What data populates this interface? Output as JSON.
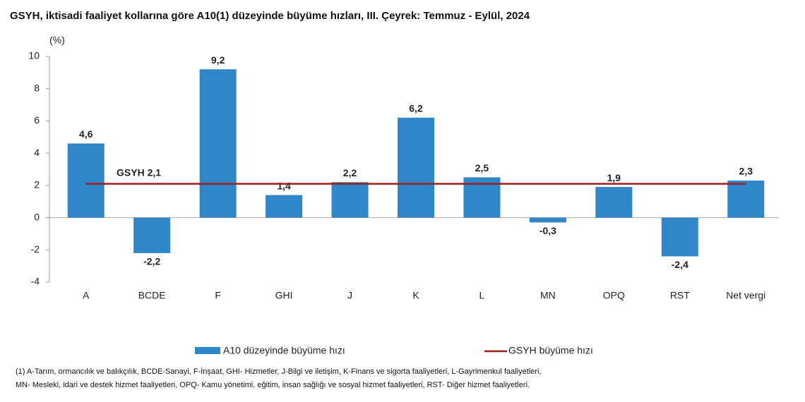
{
  "chart_data": {
    "type": "bar",
    "title": "GSYH, iktisadi faaliyet kollarına göre A10(1) düzeyinde büyüme hızları, III. Çeyrek: Temmuz - Eylül, 2024",
    "y_label": "(%)",
    "categories": [
      "A",
      "BCDE",
      "F",
      "GHI",
      "J",
      "K",
      "L",
      "MN",
      "OPQ",
      "RST",
      "Net vergi"
    ],
    "series": [
      {
        "name": "A10 düzeyinde büyüme hızı",
        "color": "#2f86c9",
        "values": [
          4.6,
          -2.2,
          9.2,
          1.4,
          2.2,
          6.2,
          2.5,
          -0.3,
          1.9,
          -2.4,
          2.3
        ],
        "value_labels": [
          "4,6",
          "-2,2",
          "9,2",
          "1,4",
          "2,2",
          "6,2",
          "2,5",
          "-0,3",
          "1,9",
          "-2,4",
          "2,3"
        ]
      }
    ],
    "reference_line": {
      "name": "GSYH büyüme hızı",
      "value": 2.1,
      "label": "GSYH 2,1",
      "color": "#9e1c1c"
    },
    "ylim": [
      -4,
      10
    ],
    "yticks": [
      -4,
      -2,
      0,
      2,
      4,
      6,
      8,
      10
    ],
    "footnote": [
      "(1) A-Tarım, ormancılık ve balıkçılık, BCDE-Sanayi, F-İnşaat, GHI- Hizmetler, J-Bilgi ve iletişim, K-Finans ve sigorta faaliyetleri, L-Gayrimenkul faaliyetleri,",
      "MN- Mesleki, idari ve destek hizmet faaliyetleri, OPQ- Kamu yönetimi, eğitim, insan sağlığı ve sosyal hizmet faaliyetleri, RST- Diğer hizmet faaliyetleri."
    ]
  }
}
